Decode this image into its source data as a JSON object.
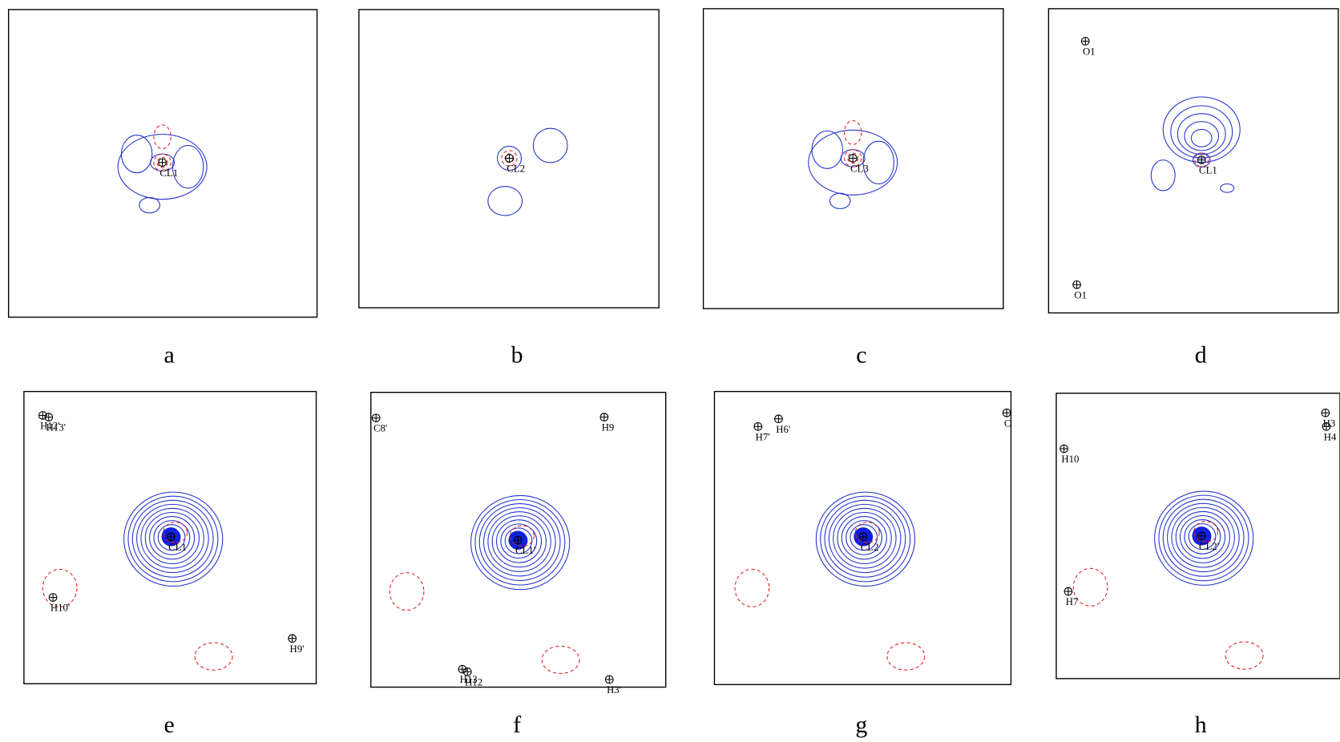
{
  "panels": [
    {
      "label": "a",
      "atoms": [
        "CL1"
      ]
    },
    {
      "label": "b",
      "atoms": [
        "CL2"
      ]
    },
    {
      "label": "c",
      "atoms": [
        "CL3"
      ]
    },
    {
      "label": "d",
      "atoms": [
        "O1",
        "CL1",
        "O1"
      ]
    },
    {
      "label": "e",
      "atoms": [
        "H12'",
        "H13'",
        "CL1",
        "H10'",
        "H9'"
      ]
    },
    {
      "label": "f",
      "atoms": [
        "C8'",
        "H9",
        "CL1'",
        "H13",
        "H12",
        "H3'"
      ]
    },
    {
      "label": "g",
      "atoms": [
        "H7'",
        "H6'",
        "CL2",
        "C"
      ]
    },
    {
      "label": "h",
      "atoms": [
        "H3",
        "H4",
        "H10",
        "CL2'",
        "H7"
      ]
    }
  ]
}
